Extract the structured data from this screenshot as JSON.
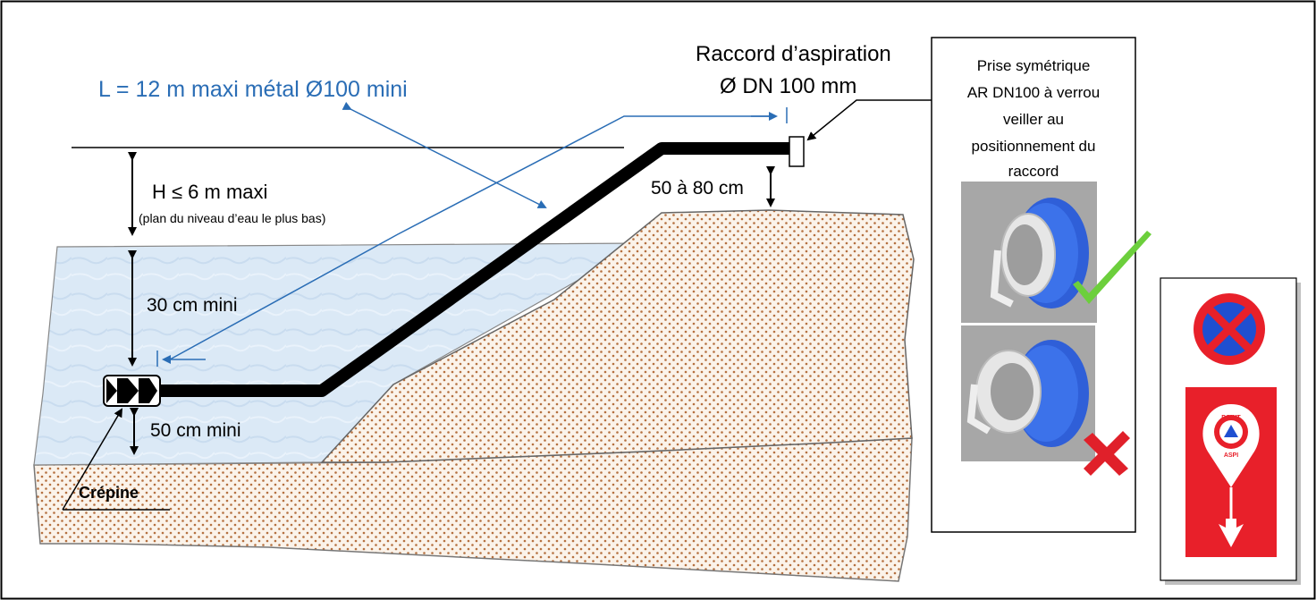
{
  "labels": {
    "length": "L = 12 m maxi métal Ø100 mini",
    "height": "H ≤ 6 m maxi",
    "height_note": "(plan du niveau d’eau le plus bas)",
    "depth_top": "30 cm mini",
    "depth_bottom": "50 cm mini",
    "clearance": "50 à 80 cm",
    "suction_title": "Raccord d’aspiration",
    "suction_dn": "Ø DN 100 mm",
    "strainer": "Crépine"
  },
  "fitting_panel": {
    "lines": [
      "Prise symétrique",
      "AR DN100 à verrou",
      "veiller au",
      "positionnement du",
      "raccord"
    ]
  },
  "sign_panel": {
    "sign_top_text": "POINT",
    "sign_bottom_text": "ASPI"
  },
  "colors": {
    "water": "#dbe9f6",
    "ground_dot": "#b5703f",
    "pipe": "#000000",
    "dimension_blue": "#2a6db5",
    "sign_red": "#e8202a",
    "sign_blue": "#1f4fd1",
    "coupling_blue": "#2f5fd8",
    "check_green": "#6ccf3c",
    "cross_red": "#e0202a"
  }
}
